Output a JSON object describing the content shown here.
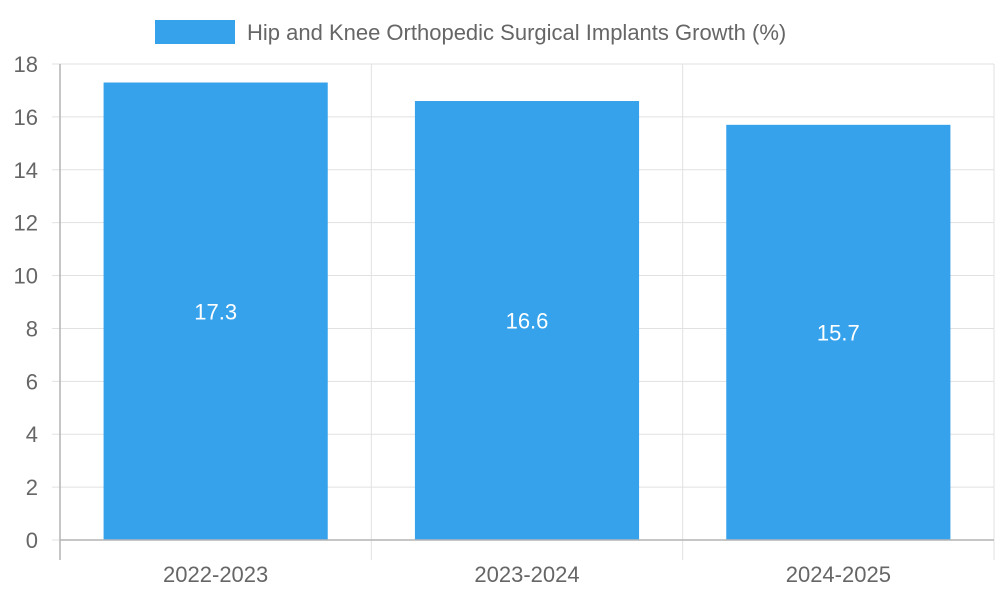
{
  "chart_data": {
    "type": "bar",
    "categories": [
      "2022-2023",
      "2023-2024",
      "2024-2025"
    ],
    "series": [
      {
        "name": "Hip and Knee Orthopedic Surgical Implants Growth (%)",
        "values": [
          17.3,
          16.6,
          15.7
        ],
        "data_labels": [
          "17.3",
          "16.6",
          "15.7"
        ],
        "color": "#36a2eb"
      }
    ],
    "ylim": [
      0,
      18
    ],
    "yticks": [
      0,
      2,
      4,
      6,
      8,
      10,
      12,
      14,
      16,
      18
    ],
    "ytick_labels": [
      "0",
      "2",
      "4",
      "6",
      "8",
      "10",
      "12",
      "14",
      "16",
      "18"
    ],
    "grid": true,
    "legend_position": "top-center",
    "title": "",
    "xlabel": "",
    "ylabel": ""
  }
}
